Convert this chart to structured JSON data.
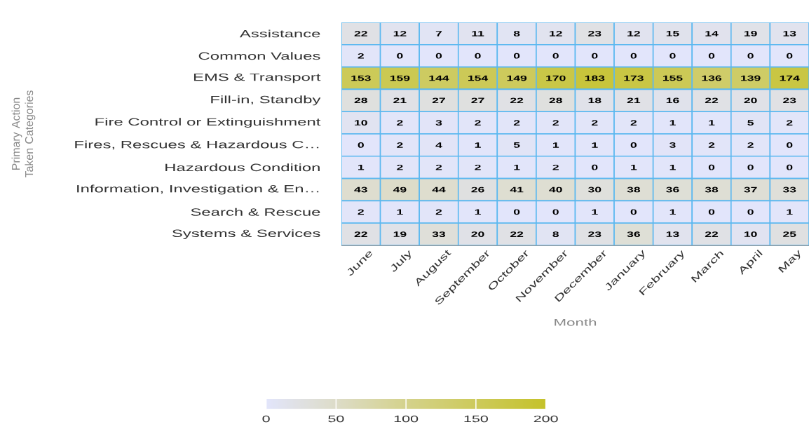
{
  "chart_data": {
    "type": "heatmap",
    "xlabel": "Month",
    "ylabel": "Primary Action Taken Categories",
    "categories": [
      "June",
      "July",
      "August",
      "September",
      "October",
      "November",
      "December",
      "January",
      "February",
      "March",
      "April",
      "May"
    ],
    "y_categories": [
      "Assistance",
      "Common Values",
      "EMS & Transport",
      "Fill-in, Standby",
      "Fire Control or Extinguishment",
      "Fires, Rescues & Hazardous C…",
      "Hazardous Condition",
      "Information, Investigation & En…",
      "Search & Rescue",
      "Systems & Services"
    ],
    "cells": [
      [
        22,
        12,
        7,
        11,
        8,
        12,
        23,
        12,
        15,
        14,
        19,
        13
      ],
      [
        2,
        0,
        0,
        0,
        0,
        0,
        0,
        0,
        0,
        0,
        0,
        0
      ],
      [
        153,
        159,
        144,
        154,
        149,
        170,
        183,
        173,
        155,
        136,
        139,
        174
      ],
      [
        28,
        21,
        27,
        27,
        22,
        28,
        18,
        21,
        16,
        22,
        20,
        23
      ],
      [
        10,
        2,
        3,
        2,
        2,
        2,
        2,
        2,
        1,
        1,
        5,
        2
      ],
      [
        0,
        2,
        4,
        1,
        5,
        1,
        1,
        0,
        3,
        2,
        2,
        0
      ],
      [
        1,
        2,
        2,
        2,
        1,
        2,
        0,
        1,
        1,
        0,
        0,
        0
      ],
      [
        43,
        49,
        44,
        26,
        41,
        40,
        30,
        38,
        36,
        38,
        37,
        33
      ],
      [
        2,
        1,
        2,
        1,
        0,
        0,
        1,
        0,
        1,
        0,
        0,
        1
      ],
      [
        22,
        19,
        33,
        20,
        22,
        8,
        23,
        36,
        13,
        22,
        10,
        25
      ]
    ],
    "clim": [
      0,
      200
    ],
    "cticks": [
      0,
      50,
      100,
      150,
      200
    ],
    "data_labels": true
  }
}
